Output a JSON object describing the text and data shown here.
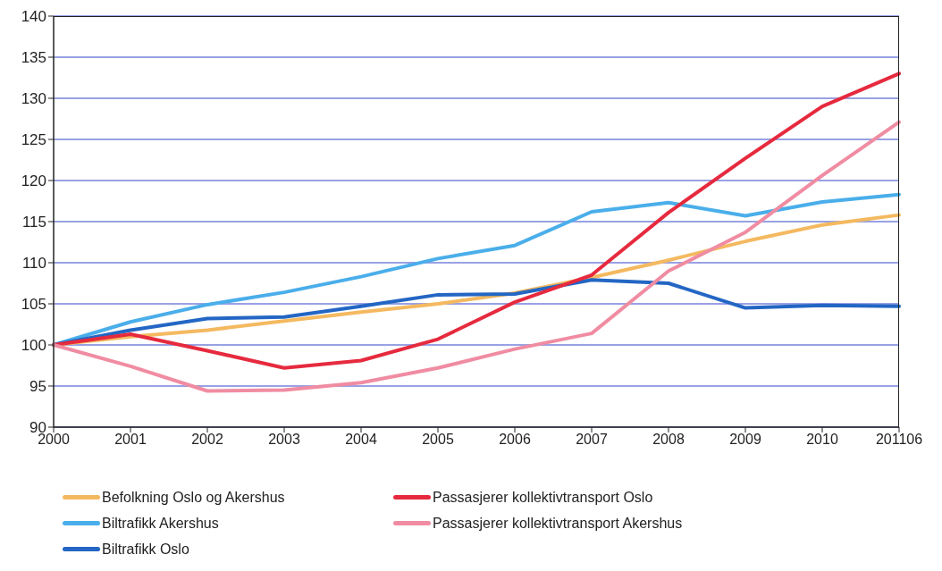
{
  "chart_data": {
    "type": "line",
    "categories": [
      "2000",
      "2001",
      "2002",
      "2003",
      "2004",
      "2005",
      "2006",
      "2007",
      "2008",
      "2009",
      "2010",
      "201106"
    ],
    "series": [
      {
        "name": "Befolkning Oslo og Akershus",
        "color": "#f4b960",
        "values": [
          100,
          101.0,
          101.8,
          102.9,
          104.0,
          105.0,
          106.3,
          108.2,
          110.3,
          112.6,
          114.6,
          115.8
        ]
      },
      {
        "name": "Biltrafikk Akershus",
        "color": "#4aaeea",
        "values": [
          100,
          102.8,
          104.9,
          106.4,
          108.3,
          110.5,
          112.1,
          116.2,
          117.3,
          115.7,
          117.4,
          118.3
        ]
      },
      {
        "name": "Biltrafikk Oslo",
        "color": "#2366c4",
        "values": [
          100,
          101.8,
          103.2,
          103.4,
          104.7,
          106.1,
          106.2,
          107.9,
          107.5,
          104.5,
          104.8,
          104.7
        ]
      },
      {
        "name": "Passasjerer kollektivtransport Oslo",
        "color": "#e62a3e",
        "values": [
          100,
          101.3,
          99.3,
          97.2,
          98.1,
          100.7,
          105.2,
          108.5,
          116.1,
          122.7,
          129.0,
          133.0
        ]
      },
      {
        "name": "Passasjerer kollektivtransport Akershus",
        "color": "#f08ca2",
        "values": [
          100,
          97.4,
          94.4,
          94.5,
          95.4,
          97.2,
          99.5,
          101.4,
          109.0,
          113.7,
          120.6,
          127.1
        ]
      }
    ],
    "ylim": [
      90,
      140
    ],
    "yticks": [
      90,
      95,
      100,
      105,
      110,
      115,
      120,
      125,
      130,
      135,
      140
    ],
    "grid": "y",
    "legend": "bottom left",
    "marker": "none",
    "line_style": "solid"
  }
}
